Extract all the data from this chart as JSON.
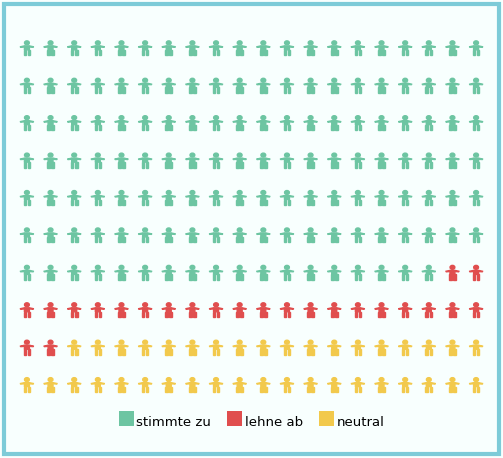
{
  "cols": 20,
  "rows": 10,
  "green_n": 138,
  "red_n": 24,
  "yellow_n": 38,
  "green_color": "#6DC5A2",
  "red_color": "#E04E4E",
  "yellow_color": "#F2C94C",
  "bg_color": "#F8FFFE",
  "border_color": "#7DCBD8",
  "legend_labels": [
    "stimmte zu",
    "lehne ab",
    "neutral"
  ],
  "figure_width": 5.03,
  "figure_height": 4.58,
  "dpi": 100
}
